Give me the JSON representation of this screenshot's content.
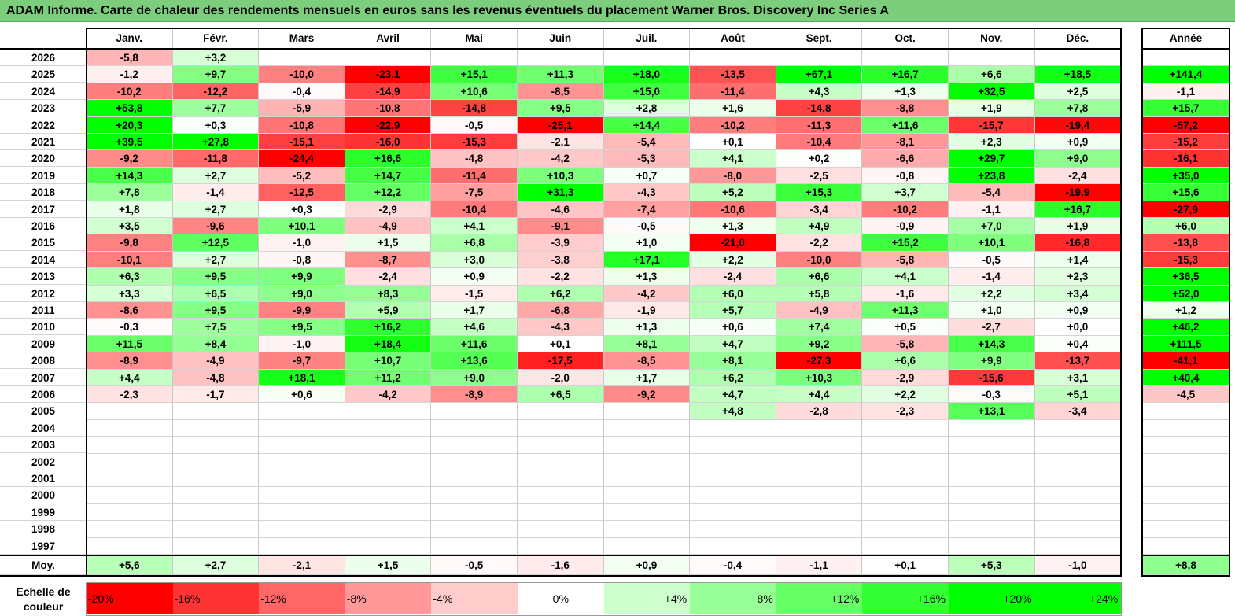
{
  "title": "ADAM Informe. Carte de chaleur des rendements mensuels en euros sans les revenus éventuels du placement Warner Bros. Discovery Inc Series A",
  "colors": {
    "title_bg": "#7ccd7c",
    "negative": "#ff0000",
    "positive": "#00ff00",
    "neutral": "#ffffff"
  },
  "chart_data": {
    "type": "heatmap",
    "title": "ADAM Informe. Carte de chaleur des rendements mensuels en euros sans les revenus éventuels du placement Warner Bros. Discovery Inc Series A",
    "columns": [
      "Janv.",
      "Févr.",
      "Mars",
      "Avril",
      "Mai",
      "Juin",
      "Juil.",
      "Août",
      "Sept.",
      "Oct.",
      "Nov.",
      "Déc."
    ],
    "year_column": "Année",
    "rows": [
      {
        "year": "2026",
        "months": [
          "-5,8",
          "+3,2",
          "",
          "",
          "",
          "",
          "",
          "",
          "",
          "",
          "",
          ""
        ],
        "annual": ""
      },
      {
        "year": "2025",
        "months": [
          "-1,2",
          "+9,7",
          "-10,0",
          "-23,1",
          "+15,1",
          "+11,3",
          "+18,0",
          "-13,5",
          "+67,1",
          "+16,7",
          "+6,6",
          "+18,5"
        ],
        "annual": "+141,4"
      },
      {
        "year": "2024",
        "months": [
          "-10,2",
          "-12,2",
          "-0,4",
          "-14,9",
          "+10,6",
          "-8,5",
          "+15,0",
          "-11,4",
          "+4,3",
          "+1,3",
          "+32,5",
          "+2,5"
        ],
        "annual": "-1,1"
      },
      {
        "year": "2023",
        "months": [
          "+53,8",
          "+7,7",
          "-5,9",
          "-10,8",
          "-14,8",
          "+9,5",
          "+2,8",
          "+1,6",
          "-14,8",
          "-8,8",
          "+1,9",
          "+7,8"
        ],
        "annual": "+15,7"
      },
      {
        "year": "2022",
        "months": [
          "+20,3",
          "+0,3",
          "-10,8",
          "-22,9",
          "-0,5",
          "-25,1",
          "+14,4",
          "-10,2",
          "-11,3",
          "+11,6",
          "-15,7",
          "-19,4"
        ],
        "annual": "-57,2"
      },
      {
        "year": "2021",
        "months": [
          "+39,5",
          "+27,8",
          "-15,1",
          "-16,0",
          "-15,3",
          "-2,1",
          "-5,4",
          "+0,1",
          "-10,4",
          "-8,1",
          "+2,3",
          "+0,9"
        ],
        "annual": "-15,2"
      },
      {
        "year": "2020",
        "months": [
          "-9,2",
          "-11,8",
          "-24,4",
          "+16,6",
          "-4,8",
          "-4,2",
          "-5,3",
          "+4,1",
          "+0,2",
          "-6,6",
          "+29,7",
          "+9,0"
        ],
        "annual": "-16,1"
      },
      {
        "year": "2019",
        "months": [
          "+14,3",
          "+2,7",
          "-5,2",
          "+14,7",
          "-11,4",
          "+10,3",
          "+0,7",
          "-8,0",
          "-2,5",
          "-0,8",
          "+23,8",
          "-2,4"
        ],
        "annual": "+35,0"
      },
      {
        "year": "2018",
        "months": [
          "+7,8",
          "-1,4",
          "-12,5",
          "+12,2",
          "-7,5",
          "+31,3",
          "-4,3",
          "+5,2",
          "+15,3",
          "+3,7",
          "-5,4",
          "-19,9"
        ],
        "annual": "+15,6"
      },
      {
        "year": "2017",
        "months": [
          "+1,8",
          "+2,7",
          "+0,3",
          "-2,9",
          "-10,4",
          "-4,6",
          "-7,4",
          "-10,6",
          "-3,4",
          "-10,2",
          "-1,1",
          "+16,7"
        ],
        "annual": "-27,9"
      },
      {
        "year": "2016",
        "months": [
          "+3,5",
          "-9,6",
          "+10,1",
          "-4,9",
          "+4,1",
          "-9,1",
          "-0,5",
          "+1,3",
          "+4,9",
          "-0,9",
          "+7,0",
          "+1,9"
        ],
        "annual": "+6,0"
      },
      {
        "year": "2015",
        "months": [
          "-9,8",
          "+12,5",
          "-1,0",
          "+1,5",
          "+6,8",
          "-3,9",
          "+1,0",
          "-21,0",
          "-2,2",
          "+15,2",
          "+10,1",
          "-16,8"
        ],
        "annual": "-13,8"
      },
      {
        "year": "2014",
        "months": [
          "-10,1",
          "+2,7",
          "-0,8",
          "-8,7",
          "+3,0",
          "-3,8",
          "+17,1",
          "+2,2",
          "-10,0",
          "-5,8",
          "-0,5",
          "+1,4"
        ],
        "annual": "-15,3"
      },
      {
        "year": "2013",
        "months": [
          "+6,3",
          "+9,5",
          "+9,9",
          "-2,4",
          "+0,9",
          "-2,2",
          "+1,3",
          "-2,4",
          "+6,6",
          "+4,1",
          "-1,4",
          "+2,3"
        ],
        "annual": "+36,5"
      },
      {
        "year": "2012",
        "months": [
          "+3,3",
          "+6,5",
          "+9,0",
          "+8,3",
          "-1,5",
          "+6,2",
          "-4,2",
          "+6,0",
          "+5,8",
          "-1,6",
          "+2,2",
          "+3,4"
        ],
        "annual": "+52,0"
      },
      {
        "year": "2011",
        "months": [
          "-8,6",
          "+9,5",
          "-9,9",
          "+5,9",
          "+1,7",
          "-6,8",
          "-1,9",
          "+5,7",
          "-4,9",
          "+11,3",
          "+1,0",
          "+0,9"
        ],
        "annual": "+1,2"
      },
      {
        "year": "2010",
        "months": [
          "-0,3",
          "+7,5",
          "+9,5",
          "+16,2",
          "+4,6",
          "-4,3",
          "+1,3",
          "+0,6",
          "+7,4",
          "+0,5",
          "-2,7",
          "+0,0"
        ],
        "annual": "+46,2"
      },
      {
        "year": "2009",
        "months": [
          "+11,5",
          "+8,4",
          "-1,0",
          "+18,4",
          "+11,6",
          "+0,1",
          "+8,1",
          "+4,7",
          "+9,2",
          "-5,8",
          "+14,3",
          "+0,4"
        ],
        "annual": "+111,5"
      },
      {
        "year": "2008",
        "months": [
          "-8,9",
          "-4,9",
          "-9,7",
          "+10,7",
          "+13,6",
          "-17,5",
          "-8,5",
          "+8,1",
          "-27,3",
          "+6,6",
          "+9,9",
          "-13,7"
        ],
        "annual": "-41,1"
      },
      {
        "year": "2007",
        "months": [
          "+4,4",
          "-4,8",
          "+18,1",
          "+11,2",
          "+9,0",
          "-2,0",
          "+1,7",
          "+6,2",
          "+10,3",
          "-2,9",
          "-15,6",
          "+3,1"
        ],
        "annual": "+40,4"
      },
      {
        "year": "2006",
        "months": [
          "-2,3",
          "-1,7",
          "+0,6",
          "-4,2",
          "-8,9",
          "+6,5",
          "-9,2",
          "+4,7",
          "+4,4",
          "+2,2",
          "-0,3",
          "+5,1"
        ],
        "annual": "-4,5"
      },
      {
        "year": "2005",
        "months": [
          "",
          "",
          "",
          "",
          "",
          "",
          "",
          "+4,8",
          "-2,8",
          "-2,3",
          "+13,1",
          "-3,4"
        ],
        "annual": ""
      },
      {
        "year": "2004",
        "months": [
          "",
          "",
          "",
          "",
          "",
          "",
          "",
          "",
          "",
          "",
          "",
          ""
        ],
        "annual": ""
      },
      {
        "year": "2003",
        "months": [
          "",
          "",
          "",
          "",
          "",
          "",
          "",
          "",
          "",
          "",
          "",
          ""
        ],
        "annual": ""
      },
      {
        "year": "2002",
        "months": [
          "",
          "",
          "",
          "",
          "",
          "",
          "",
          "",
          "",
          "",
          "",
          ""
        ],
        "annual": ""
      },
      {
        "year": "2001",
        "months": [
          "",
          "",
          "",
          "",
          "",
          "",
          "",
          "",
          "",
          "",
          "",
          ""
        ],
        "annual": ""
      },
      {
        "year": "2000",
        "months": [
          "",
          "",
          "",
          "",
          "",
          "",
          "",
          "",
          "",
          "",
          "",
          ""
        ],
        "annual": ""
      },
      {
        "year": "1999",
        "months": [
          "",
          "",
          "",
          "",
          "",
          "",
          "",
          "",
          "",
          "",
          "",
          ""
        ],
        "annual": ""
      },
      {
        "year": "1998",
        "months": [
          "",
          "",
          "",
          "",
          "",
          "",
          "",
          "",
          "",
          "",
          "",
          ""
        ],
        "annual": ""
      },
      {
        "year": "1997",
        "months": [
          "",
          "",
          "",
          "",
          "",
          "",
          "",
          "",
          "",
          "",
          "",
          ""
        ],
        "annual": ""
      }
    ],
    "average": {
      "label": "Moy.",
      "months": [
        "+5,6",
        "+2,7",
        "-2,1",
        "+1,5",
        "-0,5",
        "-1,6",
        "+0,9",
        "-0,4",
        "-1,1",
        "+0,1",
        "+5,3",
        "-1,0"
      ],
      "annual": "+8,8"
    },
    "color_scale": {
      "label": "Echelle de couleur",
      "stops": [
        {
          "label": "-20%",
          "value": -20,
          "color": "#ff0000"
        },
        {
          "label": "-16%",
          "value": -16,
          "color": "#ff3333"
        },
        {
          "label": "-12%",
          "value": -12,
          "color": "#ff6666"
        },
        {
          "label": "-8%",
          "value": -8,
          "color": "#ff9999"
        },
        {
          "label": "-4%",
          "value": -4,
          "color": "#ffcccc"
        },
        {
          "label": "0%",
          "value": 0,
          "color": "#ffffff"
        },
        {
          "label": "+4%",
          "value": 4,
          "color": "#ccffcc"
        },
        {
          "label": "+8%",
          "value": 8,
          "color": "#99ff99"
        },
        {
          "label": "+12%",
          "value": 12,
          "color": "#66ff66"
        },
        {
          "label": "+16%",
          "value": 16,
          "color": "#33ff33"
        },
        {
          "label": "+20%",
          "value": 20,
          "color": "#00ff00"
        },
        {
          "label": "+24%",
          "value": 24,
          "color": "#00ff00"
        }
      ]
    }
  }
}
